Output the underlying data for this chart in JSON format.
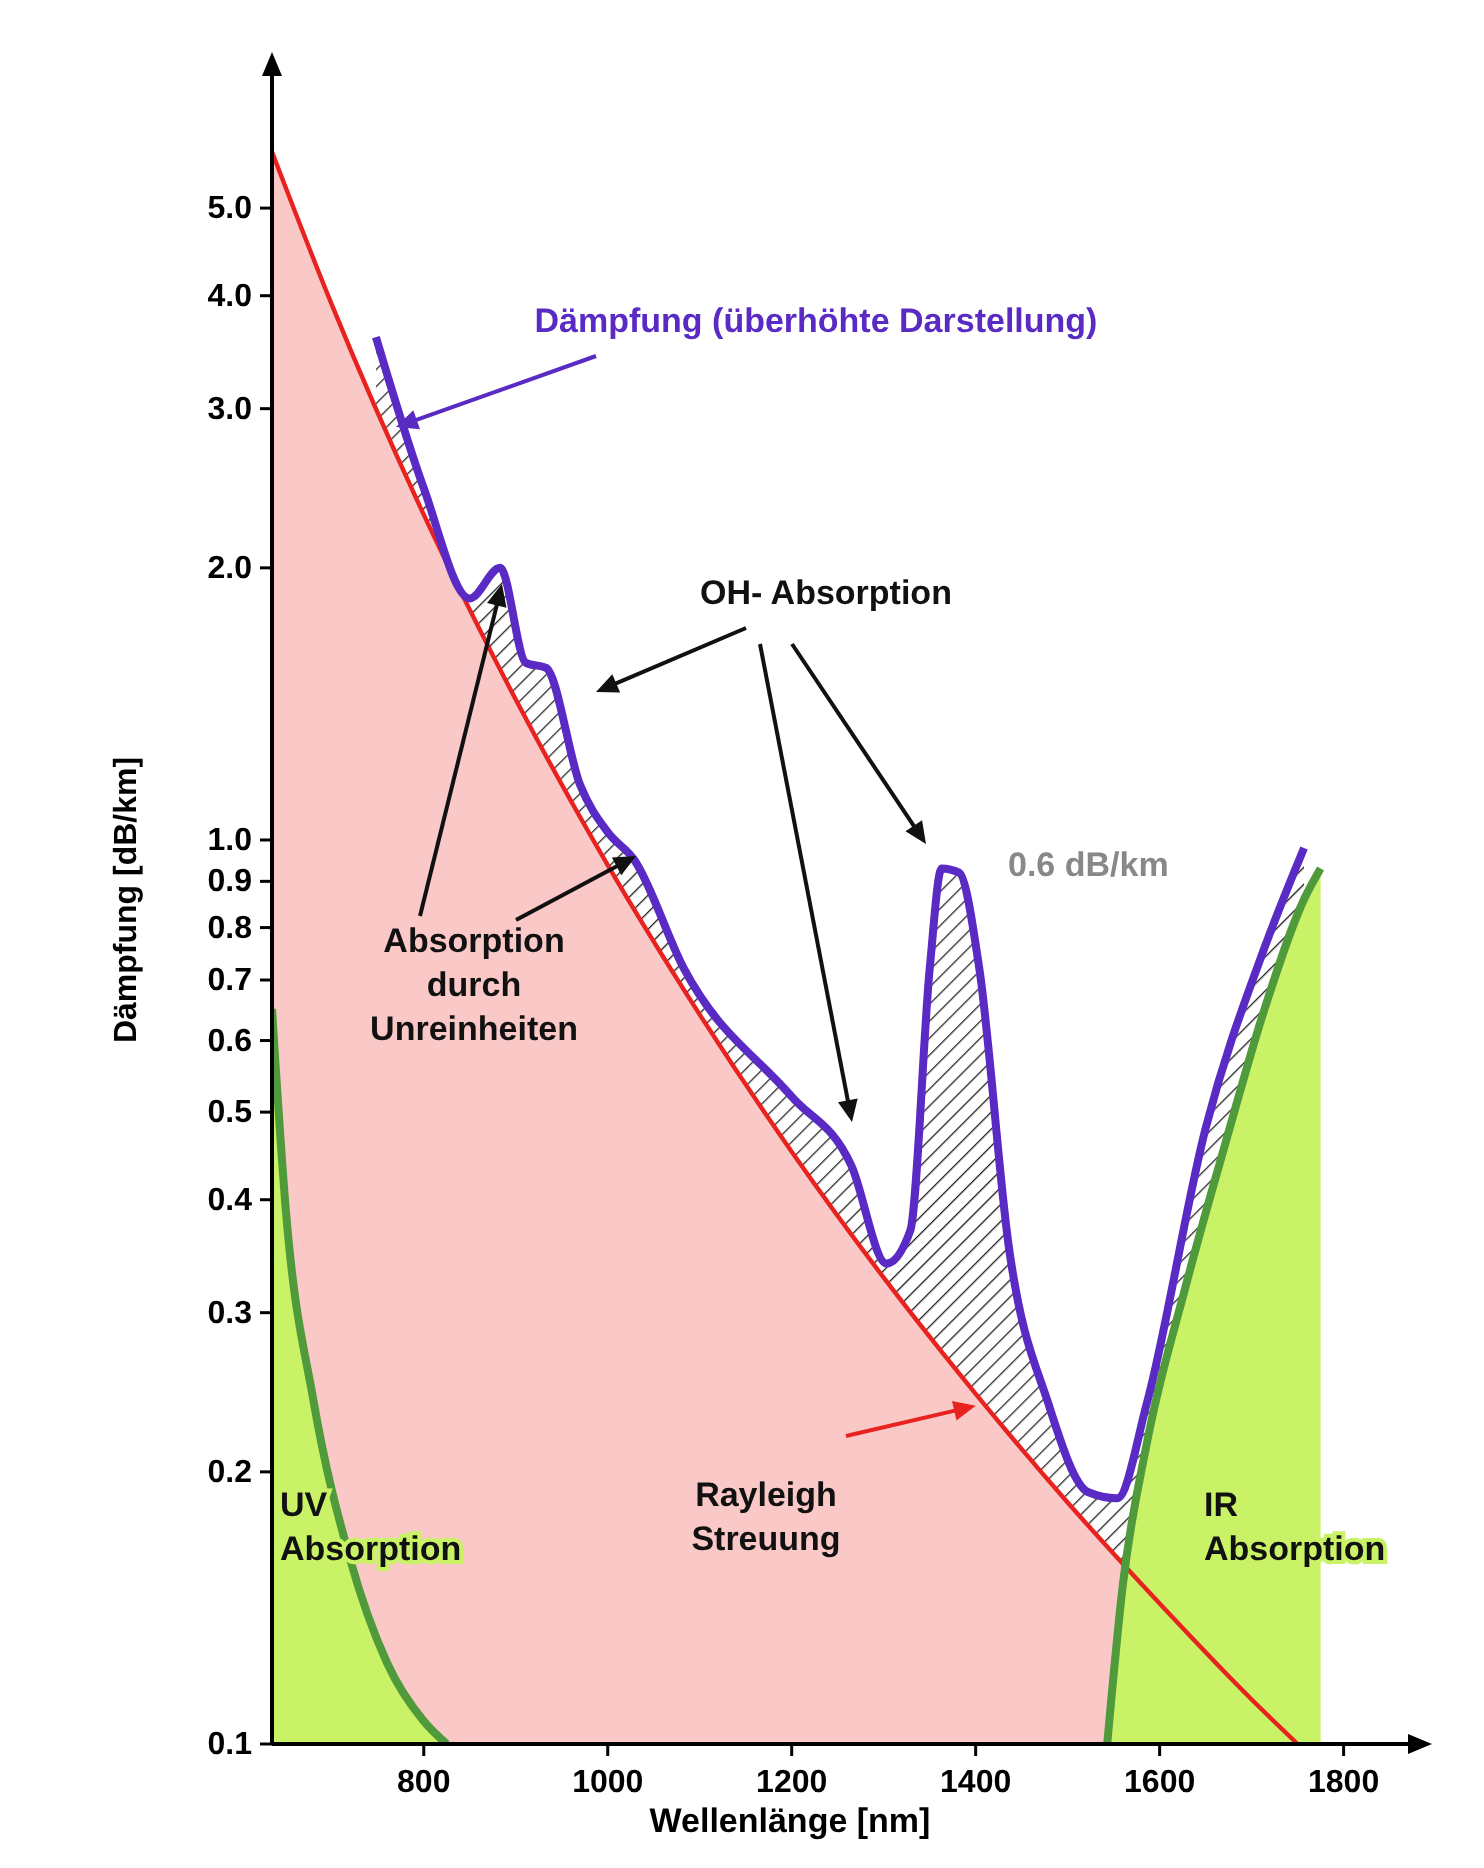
{
  "chart_data": {
    "type": "area",
    "xlabel": "Wellenlänge [nm]",
    "ylabel": "Dämpfung [dB/km]",
    "log": "y",
    "grid": false,
    "xlim": [
      635,
      1870
    ],
    "ylim": [
      0.1,
      7
    ],
    "xticks": [
      800,
      1000,
      1200,
      1400,
      1600,
      1800
    ],
    "yticks": [
      0.1,
      0.2,
      0.3,
      0.4,
      0.5,
      0.6,
      0.7,
      0.8,
      0.9,
      {
        "value": 1,
        "label": "1.0"
      },
      {
        "value": 2,
        "label": "2.0"
      },
      {
        "value": 3,
        "label": "3.0"
      },
      {
        "value": 4,
        "label": "4.0"
      },
      {
        "value": 5,
        "label": "5.0"
      }
    ],
    "series": [
      {
        "name": "Rayleigh Streuung",
        "color": "#e8231f",
        "x": [
          635,
          700,
          800,
          900,
          1000,
          1100,
          1200,
          1300,
          1400,
          1500,
          1600,
          1700,
          1750
        ],
        "values": [
          5.77,
          3.91,
          2.29,
          1.43,
          0.938,
          0.641,
          0.452,
          0.328,
          0.244,
          0.185,
          0.143,
          0.112,
          0.1
        ]
      },
      {
        "name": "UV Absorption",
        "color": "#4f9a3a",
        "x": [
          635,
          650,
          680,
          720,
          760,
          800,
          825
        ],
        "values": [
          0.65,
          0.39,
          0.24,
          0.16,
          0.123,
          0.106,
          0.1
        ]
      },
      {
        "name": "IR Absorption",
        "color": "#4f9a3a",
        "x": [
          1543,
          1560,
          1586,
          1628,
          1671,
          1714,
          1757,
          1775
        ],
        "values": [
          0.1,
          0.15,
          0.215,
          0.32,
          0.46,
          0.65,
          0.86,
          0.93
        ]
      },
      {
        "name": "Dämpfung (überhöhte Darstellung)",
        "color": "#5a2bc4",
        "x": [
          748,
          800,
          850,
          883,
          911,
          933,
          970,
          1000,
          1029,
          1083,
          1200,
          1265,
          1303,
          1329,
          1350,
          1363,
          1382,
          1404,
          1436,
          1479,
          1522,
          1554,
          1586,
          1650,
          1714,
          1757
        ],
        "values": [
          3.6,
          2.45,
          1.85,
          2.0,
          1.57,
          1.55,
          1.15,
          1.02,
          0.95,
          0.72,
          0.52,
          0.436,
          0.34,
          0.37,
          0.72,
          0.93,
          0.92,
          0.72,
          0.355,
          0.238,
          0.19,
          0.187,
          0.238,
          0.48,
          0.76,
          0.98
        ]
      }
    ],
    "annotations": [
      "OH- Absorption",
      "0.6 dB/km",
      "Absorption durch Unreinheiten"
    ]
  }
}
